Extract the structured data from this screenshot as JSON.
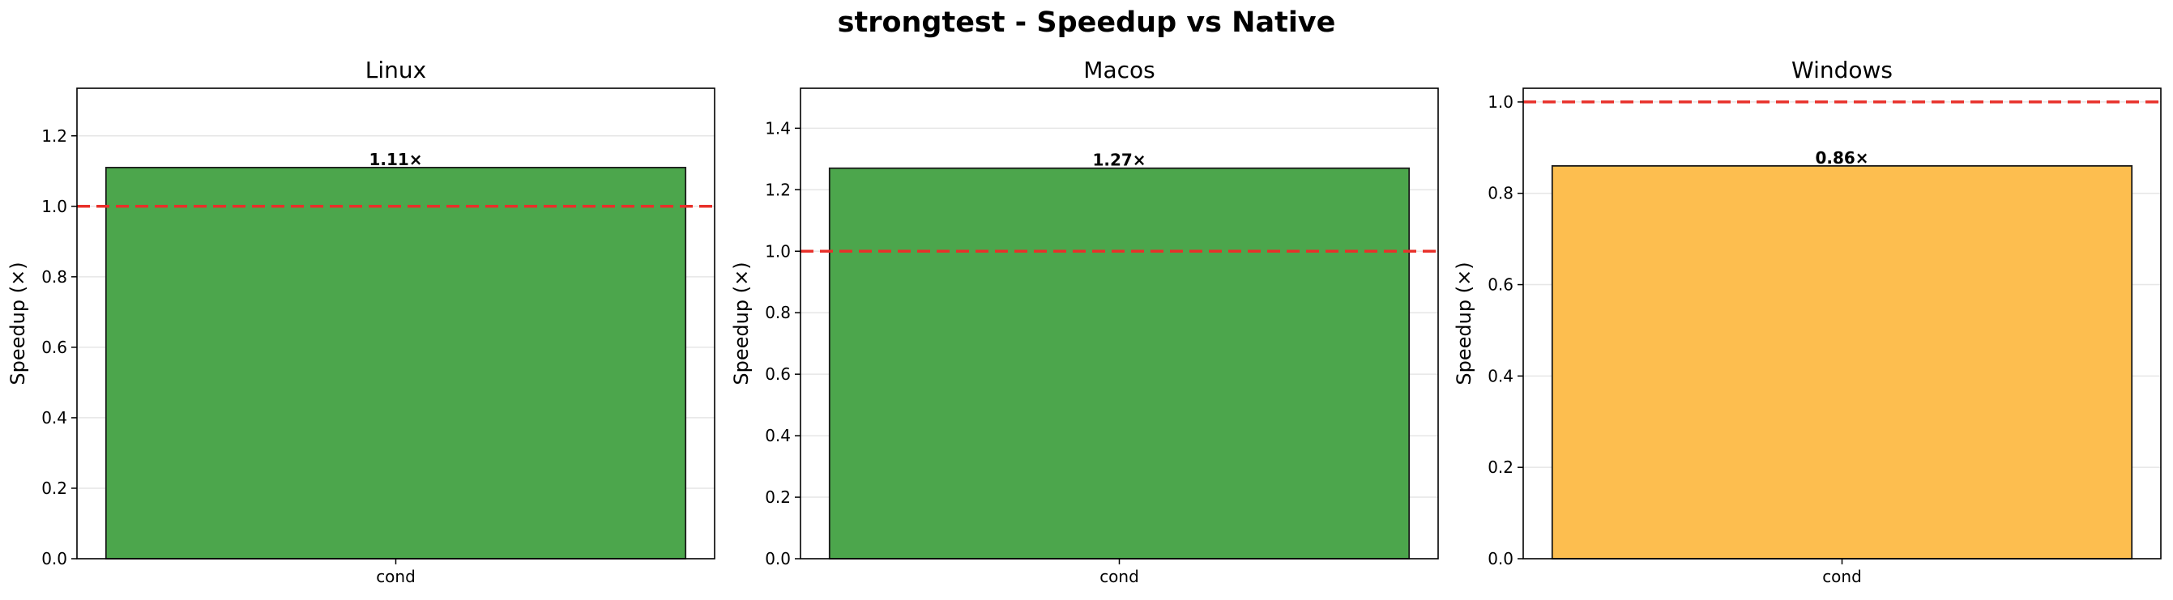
{
  "title": "strongtest - Speedup vs Native",
  "chart_data": [
    {
      "type": "bar",
      "title": "Linux",
      "categories": [
        "cond"
      ],
      "values": [
        1.11
      ],
      "value_labels": [
        "1.11×"
      ],
      "ylabel": "Speedup (×)",
      "xlabel": "",
      "ylim": [
        0,
        1.335
      ],
      "yticks": [
        "0.0",
        "0.2",
        "0.4",
        "0.6",
        "0.8",
        "1.0",
        "1.2"
      ],
      "reference_line": 1.0,
      "bar_color": "#4CA64C",
      "reference_color": "#E8302A",
      "grid": true
    },
    {
      "type": "bar",
      "title": "Macos",
      "categories": [
        "cond"
      ],
      "values": [
        1.27
      ],
      "value_labels": [
        "1.27×"
      ],
      "ylabel": "Speedup (×)",
      "xlabel": "",
      "ylim": [
        0,
        1.53
      ],
      "yticks": [
        "0.0",
        "0.2",
        "0.4",
        "0.6",
        "0.8",
        "1.0",
        "1.2",
        "1.4"
      ],
      "reference_line": 1.0,
      "bar_color": "#4CA64C",
      "reference_color": "#E8302A",
      "grid": true
    },
    {
      "type": "bar",
      "title": "Windows",
      "categories": [
        "cond"
      ],
      "values": [
        0.86
      ],
      "value_labels": [
        "0.86×"
      ],
      "ylabel": "Speedup (×)",
      "xlabel": "",
      "ylim": [
        0,
        1.03
      ],
      "yticks": [
        "0.0",
        "0.2",
        "0.4",
        "0.6",
        "0.8",
        "1.0"
      ],
      "reference_line": 1.0,
      "bar_color": "#FDBE4F",
      "reference_color": "#E8302A",
      "grid": true
    }
  ]
}
